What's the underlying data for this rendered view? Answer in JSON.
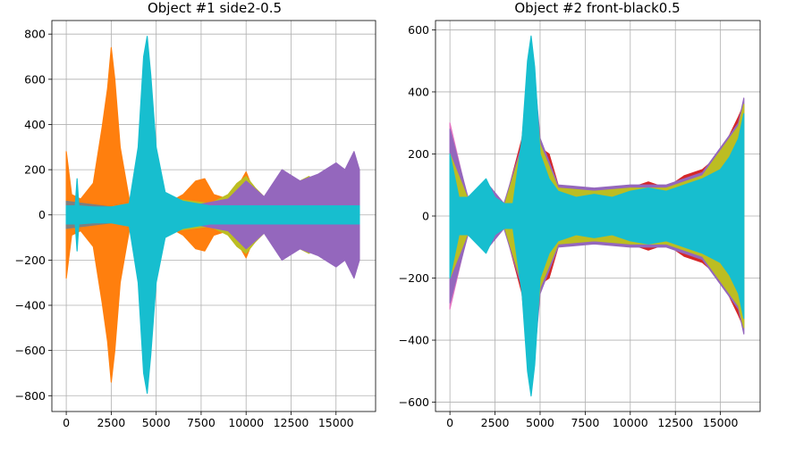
{
  "chart_data": [
    {
      "type": "line",
      "title": "Object #1 side2-0.5",
      "xlabel": "",
      "ylabel": "",
      "xlim": [
        -800,
        17200
      ],
      "ylim": [
        -870,
        860
      ],
      "xticks": [
        0,
        2500,
        5000,
        7500,
        10000,
        12500,
        15000
      ],
      "yticks": [
        -800,
        -600,
        -400,
        -200,
        0,
        200,
        400,
        600,
        800
      ],
      "xtick_labels": [
        "0",
        "2500",
        "5000",
        "7500",
        "10000",
        "12500",
        "15000"
      ],
      "ytick_labels": [
        "−800",
        "−600",
        "−400",
        "−200",
        "0",
        "200",
        "400",
        "600",
        "800"
      ],
      "grid": true,
      "series": [
        {
          "color": "#ff7f0e",
          "x": [
            0,
            300,
            800,
            1500,
            2000,
            2300,
            2500,
            2700,
            3000,
            3500,
            4200,
            4600,
            5500,
            6500,
            7200,
            7700,
            8200,
            9000,
            9500,
            10000,
            10500,
            11000,
            12000,
            13000,
            13500,
            14000,
            14500,
            15000,
            15500,
            16000,
            16300
          ],
          "values": [
            280,
            90,
            70,
            140,
            390,
            560,
            740,
            600,
            300,
            70,
            60,
            50,
            45,
            90,
            150,
            160,
            90,
            70,
            120,
            190,
            90,
            70,
            120,
            110,
            140,
            100,
            160,
            190,
            170,
            210,
            170
          ]
        },
        {
          "color": "#bcbd22",
          "x": [
            0,
            1000,
            2000,
            3000,
            4000,
            4500,
            5000,
            6000,
            7000,
            8000,
            9000,
            9500,
            10000,
            10500,
            11000,
            11500,
            12000,
            12500,
            13000,
            13500,
            14000,
            14500,
            15000,
            15500,
            16000,
            16300
          ],
          "values": [
            40,
            35,
            30,
            30,
            40,
            60,
            90,
            70,
            60,
            50,
            90,
            140,
            170,
            120,
            80,
            130,
            180,
            170,
            150,
            170,
            140,
            170,
            200,
            180,
            220,
            180
          ]
        },
        {
          "color": "#9467bd",
          "x": [
            0,
            2000,
            4000,
            5000,
            7000,
            9000,
            10000,
            11000,
            12000,
            13000,
            14000,
            15000,
            15500,
            16000,
            16300
          ],
          "values": [
            30,
            20,
            40,
            60,
            40,
            70,
            150,
            80,
            200,
            150,
            180,
            230,
            200,
            280,
            200
          ]
        },
        {
          "color": "#1f77b4",
          "x": [
            0,
            1000,
            2000,
            3000,
            5000,
            8000,
            12000,
            16300
          ],
          "values": [
            30,
            20,
            30,
            25,
            40,
            30,
            40,
            30
          ]
        },
        {
          "color": "#7f7f7f",
          "x": [
            0,
            1000,
            2000,
            3000,
            5000,
            8000,
            12000,
            16300
          ],
          "values": [
            60,
            50,
            40,
            30,
            40,
            30,
            40,
            30
          ]
        },
        {
          "color": "#17becf",
          "x": [
            0,
            500,
            600,
            700,
            1500,
            2500,
            3500,
            4000,
            4300,
            4500,
            4700,
            5000,
            5500,
            6500,
            8000,
            10000,
            12000,
            14000,
            16300
          ],
          "values": [
            40,
            40,
            160,
            40,
            35,
            35,
            50,
            300,
            700,
            790,
            620,
            300,
            100,
            60,
            40,
            40,
            40,
            40,
            40
          ]
        }
      ]
    },
    {
      "type": "line",
      "title": "Object #2 front-black0.5",
      "xlabel": "",
      "ylabel": "",
      "xlim": [
        -800,
        17200
      ],
      "ylim": [
        -630,
        630
      ],
      "xticks": [
        0,
        2500,
        5000,
        7500,
        10000,
        12500,
        15000
      ],
      "yticks": [
        -600,
        -400,
        -200,
        0,
        200,
        400,
        600
      ],
      "xtick_labels": [
        "0",
        "2500",
        "5000",
        "7500",
        "10000",
        "12500",
        "15000"
      ],
      "ytick_labels": [
        "−600",
        "−400",
        "−200",
        "0",
        "200",
        "400",
        "600"
      ],
      "grid": true,
      "series": [
        {
          "color": "#d62728",
          "x": [
            0,
            1000,
            2000,
            3000,
            4000,
            4500,
            5000,
            5500,
            6000,
            7000,
            8000,
            9000,
            10000,
            11000,
            12000,
            13000,
            14000,
            15000,
            16000,
            16300
          ],
          "values": [
            90,
            50,
            80,
            30,
            250,
            560,
            220,
            200,
            100,
            60,
            80,
            60,
            90,
            110,
            90,
            130,
            150,
            200,
            320,
            360
          ]
        },
        {
          "color": "#e377c2",
          "x": [
            0,
            1000,
            2000,
            3000,
            4000,
            4500,
            5000,
            6000,
            8000,
            10000,
            12000,
            14000,
            16000,
            16300
          ],
          "values": [
            300,
            50,
            70,
            30,
            200,
            520,
            200,
            80,
            70,
            80,
            80,
            120,
            280,
            340
          ]
        },
        {
          "color": "#9467bd",
          "x": [
            0,
            1000,
            2000,
            3000,
            4000,
            4500,
            5000,
            6000,
            8000,
            10000,
            12000,
            14000,
            16000,
            16300
          ],
          "values": [
            280,
            60,
            110,
            40,
            230,
            570,
            250,
            100,
            90,
            100,
            100,
            140,
            300,
            380
          ]
        },
        {
          "color": "#bcbd22",
          "x": [
            0,
            1000,
            2000,
            3000,
            4000,
            4500,
            5000,
            6000,
            8000,
            10000,
            12000,
            14000,
            16000,
            16300
          ],
          "values": [
            200,
            55,
            90,
            30,
            220,
            540,
            230,
            90,
            80,
            90,
            90,
            130,
            290,
            360
          ]
        },
        {
          "color": "#17becf",
          "x": [
            0,
            500,
            1000,
            1500,
            2000,
            2500,
            3000,
            3500,
            4000,
            4300,
            4500,
            4700,
            5000,
            5500,
            6000,
            7000,
            8000,
            9000,
            10000,
            11000,
            12000,
            13000,
            14000,
            15000,
            15500,
            16000,
            16300
          ],
          "values": [
            200,
            60,
            60,
            90,
            120,
            60,
            40,
            40,
            250,
            500,
            580,
            480,
            200,
            120,
            80,
            60,
            70,
            60,
            80,
            90,
            80,
            100,
            120,
            150,
            190,
            250,
            330
          ]
        }
      ]
    }
  ]
}
